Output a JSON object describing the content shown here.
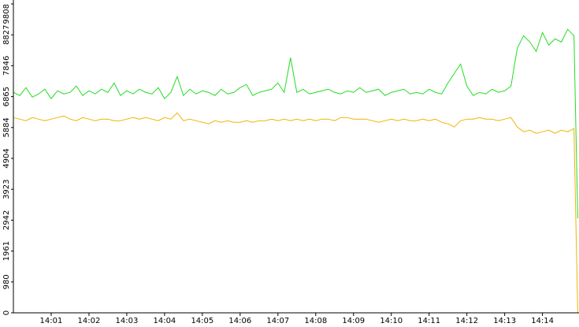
{
  "chart_data": {
    "type": "line",
    "x": [
      0,
      10,
      20,
      30,
      40,
      50,
      60,
      70,
      80,
      90,
      100,
      110,
      120,
      130,
      140,
      150,
      160,
      170,
      180,
      190,
      200,
      210,
      220,
      230,
      240,
      250,
      260,
      270,
      280,
      290,
      300,
      310,
      320,
      330,
      340,
      350,
      360,
      370,
      380,
      390,
      400,
      410,
      420,
      430,
      440,
      450,
      460,
      470,
      480,
      490,
      500,
      510,
      520,
      530,
      540,
      550,
      560,
      570,
      580,
      590,
      600,
      610,
      620,
      630,
      640,
      650,
      660,
      670,
      680,
      690,
      700,
      710,
      720,
      730,
      740,
      750,
      760,
      770,
      780,
      790,
      800,
      810,
      820,
      830,
      840,
      850,
      860,
      870,
      880,
      890,
      896
    ],
    "series": [
      {
        "color": "#22dd22",
        "values": [
          7000,
          6900,
          7150,
          6850,
          6950,
          7100,
          6800,
          7050,
          6950,
          7000,
          7200,
          6900,
          7050,
          6950,
          7100,
          7000,
          7300,
          6900,
          7050,
          6950,
          7100,
          7000,
          6950,
          7150,
          6800,
          7000,
          7500,
          6900,
          7100,
          6950,
          7050,
          7000,
          6900,
          7100,
          6950,
          7000,
          7150,
          7250,
          6900,
          7000,
          7050,
          7100,
          7300,
          7000,
          8100,
          7000,
          7100,
          6950,
          7000,
          7050,
          7100,
          7000,
          6950,
          7050,
          7000,
          7150,
          7000,
          7050,
          7100,
          6900,
          7000,
          7050,
          7100,
          6950,
          7000,
          6950,
          7100,
          7000,
          6950,
          7300,
          7600,
          7900,
          7200,
          6900,
          7000,
          6950,
          7100,
          7000,
          7050,
          7200,
          8400,
          8800,
          8600,
          8300,
          8900,
          8500,
          8700,
          8600,
          9000,
          8800,
          3000
        ]
      },
      {
        "color": "#f0b400",
        "values": [
          6200,
          6150,
          6100,
          6200,
          6150,
          6100,
          6150,
          6200,
          6250,
          6150,
          6100,
          6200,
          6150,
          6100,
          6150,
          6150,
          6100,
          6100,
          6150,
          6200,
          6150,
          6200,
          6150,
          6100,
          6200,
          6150,
          6350,
          6100,
          6150,
          6100,
          6050,
          6000,
          6100,
          6050,
          6100,
          6050,
          6050,
          6100,
          6050,
          6100,
          6100,
          6150,
          6100,
          6150,
          6100,
          6150,
          6100,
          6150,
          6100,
          6150,
          6150,
          6100,
          6200,
          6200,
          6150,
          6150,
          6150,
          6100,
          6050,
          6100,
          6150,
          6100,
          6150,
          6100,
          6100,
          6150,
          6100,
          6150,
          6050,
          6000,
          5900,
          6100,
          6150,
          6150,
          6200,
          6150,
          6150,
          6100,
          6150,
          6200,
          5900,
          5750,
          5800,
          5700,
          5750,
          5800,
          5700,
          5800,
          5750,
          5850,
          0
        ]
      }
    ],
    "xlim": [
      0,
      898
    ],
    "xticks": [
      {
        "value": 60,
        "label": "14:01"
      },
      {
        "value": 120,
        "label": "14:02"
      },
      {
        "value": 180,
        "label": "14:03"
      },
      {
        "value": 240,
        "label": "14:04"
      },
      {
        "value": 300,
        "label": "14:05"
      },
      {
        "value": 360,
        "label": "14:06"
      },
      {
        "value": 420,
        "label": "14:07"
      },
      {
        "value": 480,
        "label": "14:08"
      },
      {
        "value": 540,
        "label": "14:09"
      },
      {
        "value": 600,
        "label": "14:10"
      },
      {
        "value": 660,
        "label": "14:11"
      },
      {
        "value": 720,
        "label": "14:12"
      },
      {
        "value": 780,
        "label": "14:13"
      },
      {
        "value": 840,
        "label": "14:14"
      }
    ],
    "ylim": [
      0,
      9808
    ],
    "yticks": [
      0,
      980,
      1961,
      2942,
      3923,
      4904,
      5884,
      6865,
      7846,
      8827,
      9808
    ]
  }
}
